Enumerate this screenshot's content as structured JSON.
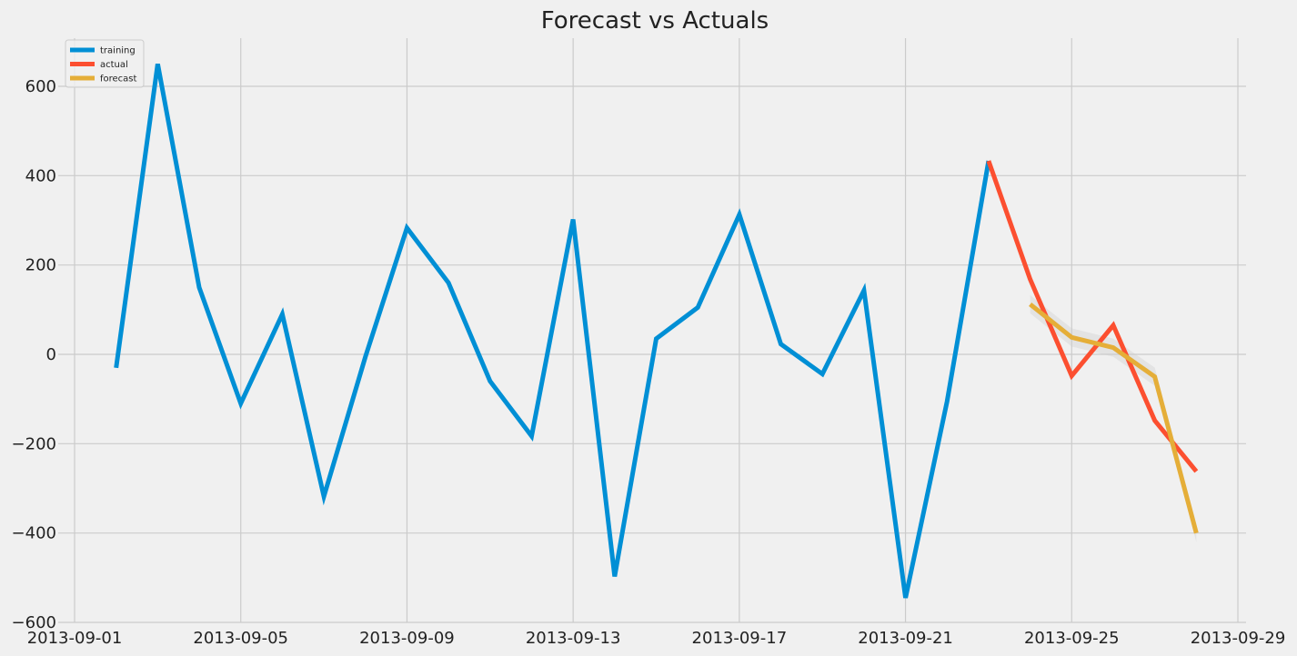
{
  "chart_data": {
    "type": "line",
    "title": "Forecast vs Actuals",
    "xlabel": "",
    "ylabel": "",
    "x_axis": {
      "type": "date",
      "range": [
        "2013-09-01",
        "2013-09-29"
      ],
      "tick_labels": [
        "2013-09-01",
        "2013-09-05",
        "2013-09-09",
        "2013-09-13",
        "2013-09-17",
        "2013-09-21",
        "2013-09-25",
        "2013-09-29"
      ]
    },
    "y_axis": {
      "range": [
        -600,
        700
      ],
      "tick_labels": [
        "600",
        "400",
        "200",
        "0",
        "−200",
        "−400",
        "−600"
      ],
      "tick_values": [
        600,
        400,
        200,
        0,
        -200,
        -400,
        -600
      ]
    },
    "grid": true,
    "legend_position": "top-left",
    "series": [
      {
        "name": "training",
        "color": "#008fd5",
        "points": [
          {
            "x": "2013-09-02",
            "y": -30
          },
          {
            "x": "2013-09-03",
            "y": 650
          },
          {
            "x": "2013-09-04",
            "y": 150
          },
          {
            "x": "2013-09-05",
            "y": -110
          },
          {
            "x": "2013-09-06",
            "y": 90
          },
          {
            "x": "2013-09-07",
            "y": -318
          },
          {
            "x": "2013-09-08",
            "y": -5
          },
          {
            "x": "2013-09-09",
            "y": 283
          },
          {
            "x": "2013-09-10",
            "y": 160
          },
          {
            "x": "2013-09-11",
            "y": -60
          },
          {
            "x": "2013-09-12",
            "y": -183
          },
          {
            "x": "2013-09-13",
            "y": 302
          },
          {
            "x": "2013-09-14",
            "y": -497
          },
          {
            "x": "2013-09-15",
            "y": 35
          },
          {
            "x": "2013-09-16",
            "y": 105
          },
          {
            "x": "2013-09-17",
            "y": 313
          },
          {
            "x": "2013-09-18",
            "y": 23
          },
          {
            "x": "2013-09-19",
            "y": -44
          },
          {
            "x": "2013-09-20",
            "y": 143
          },
          {
            "x": "2013-09-21",
            "y": -545
          },
          {
            "x": "2013-09-22",
            "y": -105
          },
          {
            "x": "2013-09-23",
            "y": 433
          }
        ]
      },
      {
        "name": "actual",
        "color": "#fc4f30",
        "points": [
          {
            "x": "2013-09-23",
            "y": 433
          },
          {
            "x": "2013-09-24",
            "y": 168
          },
          {
            "x": "2013-09-25",
            "y": -48
          },
          {
            "x": "2013-09-26",
            "y": 65
          },
          {
            "x": "2013-09-27",
            "y": -148
          },
          {
            "x": "2013-09-28",
            "y": -262
          }
        ]
      },
      {
        "name": "forecast",
        "color": "#e5ae38",
        "points": [
          {
            "x": "2013-09-24",
            "y": 112
          },
          {
            "x": "2013-09-25",
            "y": 38
          },
          {
            "x": "2013-09-26",
            "y": 15
          },
          {
            "x": "2013-09-27",
            "y": -50
          },
          {
            "x": "2013-09-28",
            "y": -400
          }
        ]
      }
    ]
  }
}
